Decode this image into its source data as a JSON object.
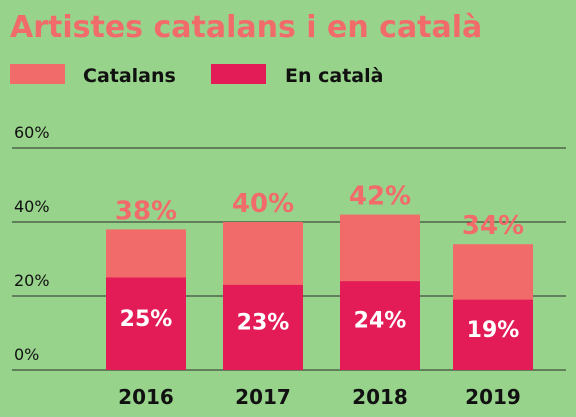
{
  "chart_data": {
    "type": "bar",
    "stacked": true,
    "title": "Artistes catalans i en català",
    "legend_position": "top-left",
    "categories": [
      "2016",
      "2017",
      "2018",
      "2019"
    ],
    "series": [
      {
        "name": "En català",
        "color": "#e31b57",
        "values": [
          25,
          23,
          24,
          19
        ]
      },
      {
        "name": "Catalans",
        "color": "#f16b6b",
        "values": [
          38,
          40,
          42,
          34
        ]
      }
    ],
    "y_ticks": [
      "0%",
      "20%",
      "40%",
      "60%"
    ],
    "ylim": [
      0,
      60
    ],
    "grid": true,
    "data_labels": {
      "total": [
        "38%",
        "40%",
        "42%",
        "34%"
      ],
      "inner": [
        "25%",
        "23%",
        "24%",
        "19%"
      ]
    },
    "colors": {
      "background": "#98d38c",
      "title": "#f16b6b",
      "catalans": "#f16b6b",
      "catala": "#e31b57",
      "text": "#111111",
      "inner_label": "#ffffff"
    }
  }
}
